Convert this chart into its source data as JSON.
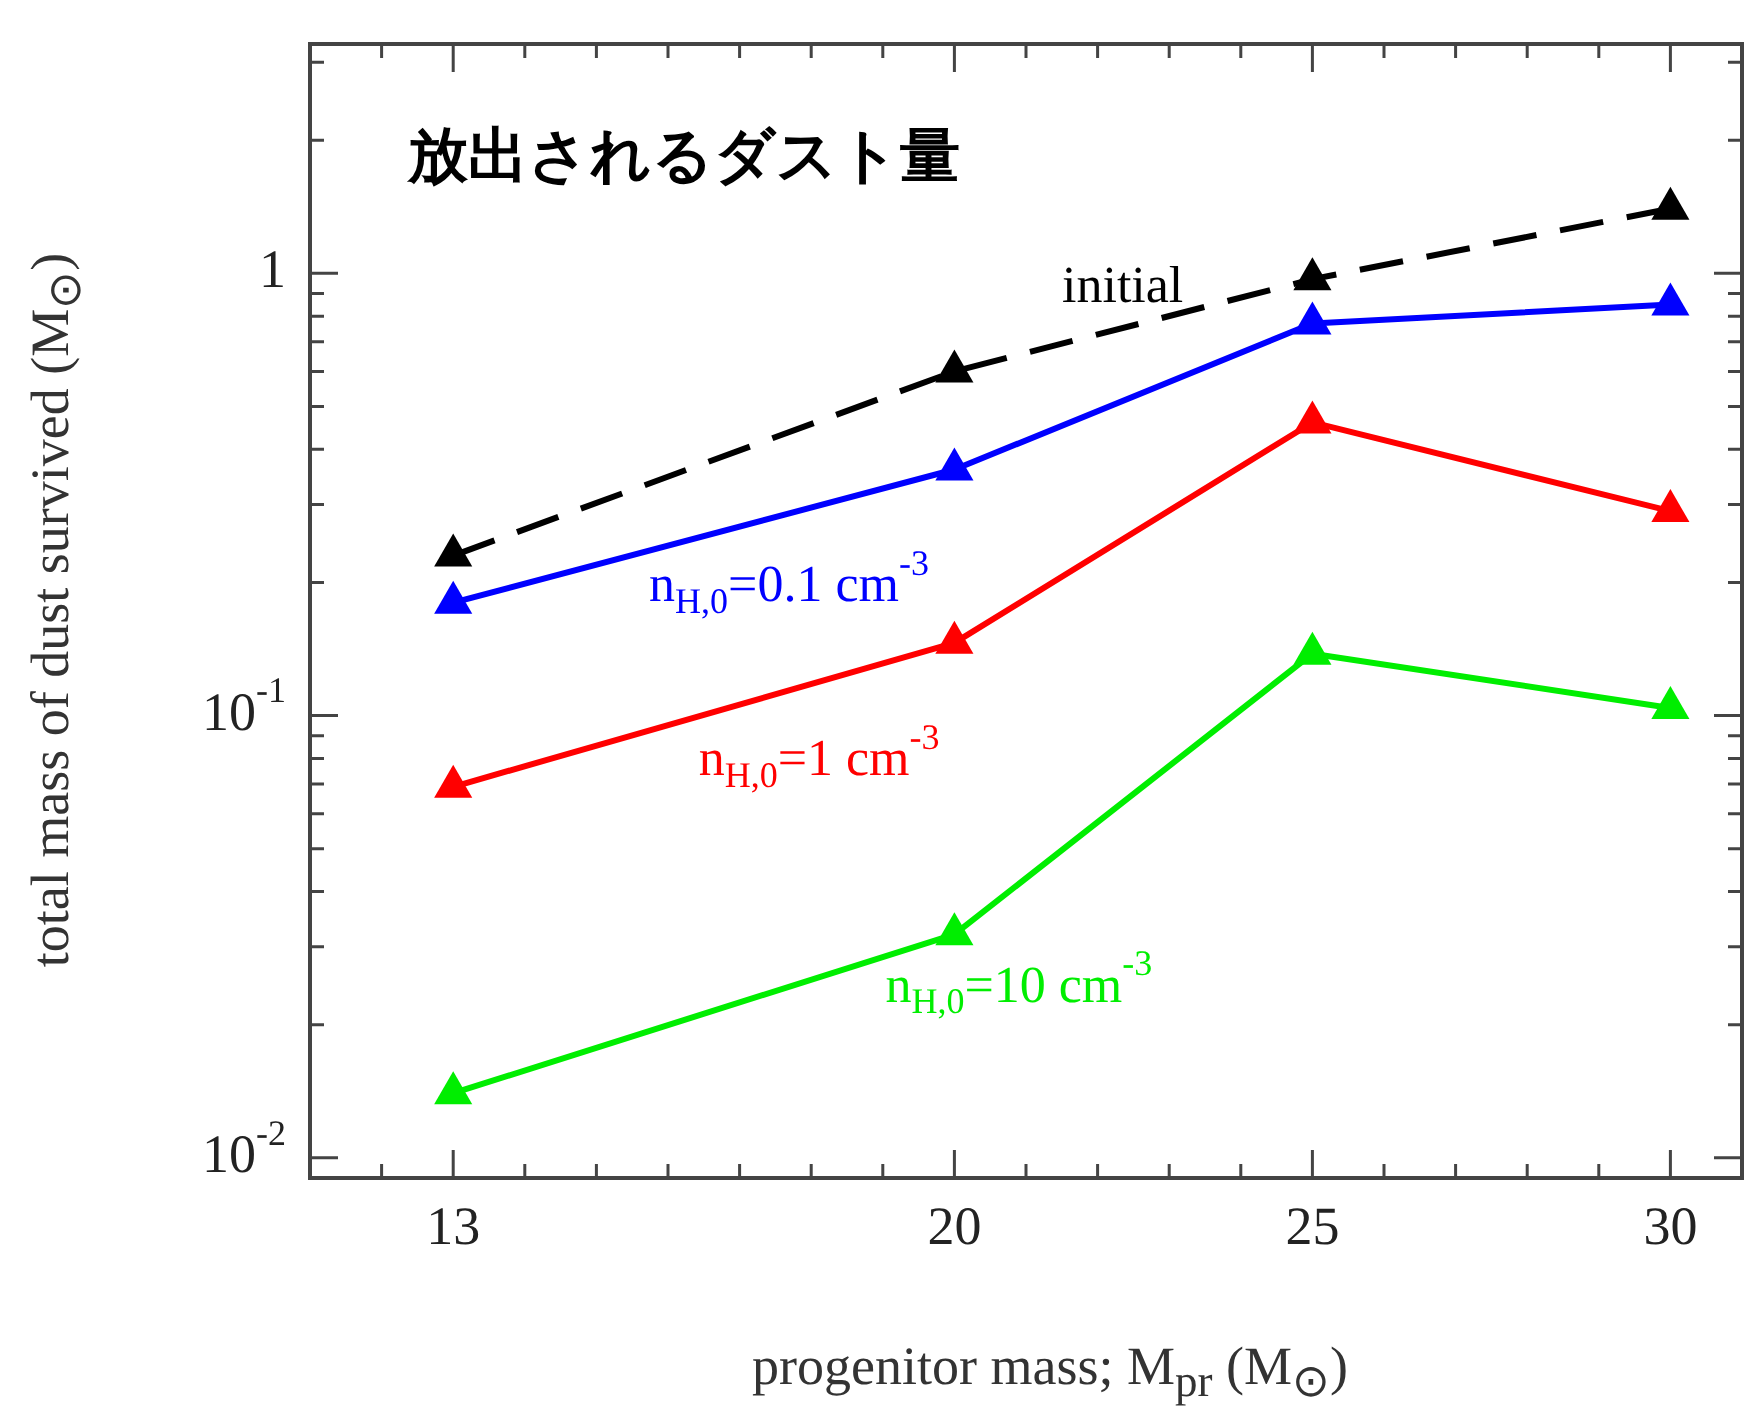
{
  "chart_data": {
    "type": "line",
    "title": "放出されるダスト量",
    "xlabel": "progenitor mass; M$_{pr}$ (M$_{⊙}$)",
    "ylabel": "total mass of dust survived (M$_{⊙}$)",
    "x": [
      13,
      20,
      25,
      30
    ],
    "series": [
      {
        "name": "initial",
        "color": "#000000",
        "values": [
          0.23,
          0.6,
          0.97,
          1.4
        ],
        "line_style": "dashed"
      },
      {
        "name": "n$_{H,0}$=0.1 cm$^{-3}$",
        "color": "#0000ff",
        "values": [
          0.18,
          0.36,
          0.77,
          0.85
        ]
      },
      {
        "name": "n$_{H,0}$=1 cm$^{-3}$",
        "color": "#ff0000",
        "values": [
          0.069,
          0.146,
          0.46,
          0.29
        ]
      },
      {
        "name": "n$_{H,0}$=10 cm$^{-3}$",
        "color": "#00ee00",
        "values": [
          0.014,
          0.032,
          0.138,
          0.104
        ]
      }
    ],
    "log": "y",
    "marker": "triangle",
    "grid": false,
    "legend": false,
    "xlim": [
      11,
      31
    ],
    "xticks": [
      {
        "value": 12,
        "label": null
      },
      13,
      {
        "value": 14,
        "label": null
      },
      {
        "value": 15,
        "label": null
      },
      {
        "value": 16,
        "label": null
      },
      {
        "value": 17,
        "label": null
      },
      {
        "value": 18,
        "label": null
      },
      {
        "value": 19,
        "label": null
      },
      20,
      {
        "value": 21,
        "label": null
      },
      {
        "value": 22,
        "label": null
      },
      {
        "value": 23,
        "label": null
      },
      {
        "value": 24,
        "label": null
      },
      25,
      {
        "value": 26,
        "label": null
      },
      {
        "value": 27,
        "label": null
      },
      {
        "value": 28,
        "label": null
      },
      {
        "value": 29,
        "label": null
      },
      30
    ],
    "ylim": [
      0.009,
      3.3
    ],
    "yticks": [
      {
        "value": 0.01,
        "label": "10$^{-2}$"
      },
      {
        "value": 0.02,
        "label": null
      },
      {
        "value": 0.03,
        "label": null
      },
      {
        "value": 0.04,
        "label": null
      },
      {
        "value": 0.05,
        "label": null
      },
      {
        "value": 0.06,
        "label": null
      },
      {
        "value": 0.07,
        "label": null
      },
      {
        "value": 0.08,
        "label": null
      },
      {
        "value": 0.09,
        "label": null
      },
      {
        "value": 0.1,
        "label": "10$^{-1}$"
      },
      {
        "value": 0.2,
        "label": null
      },
      {
        "value": 0.3,
        "label": null
      },
      {
        "value": 0.4,
        "label": null
      },
      {
        "value": 0.5,
        "label": null
      },
      {
        "value": 0.6,
        "label": null
      },
      {
        "value": 0.7,
        "label": null
      },
      {
        "value": 0.8,
        "label": null
      },
      {
        "value": 0.9,
        "label": null
      },
      1,
      {
        "value": 2,
        "label": null
      },
      {
        "value": 3,
        "label": null
      }
    ]
  }
}
